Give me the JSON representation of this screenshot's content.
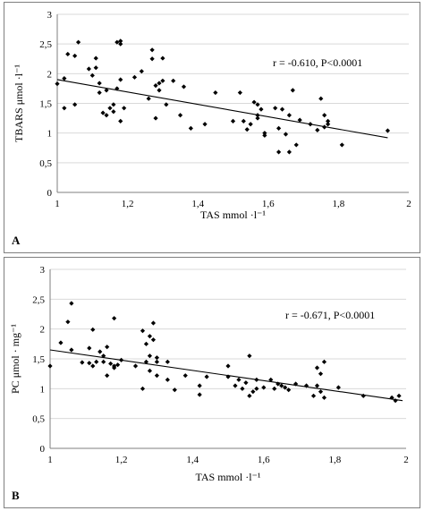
{
  "chart_data": [
    {
      "type": "scatter",
      "panel_label": "A",
      "xlabel": "TAS mmol ·l⁻¹",
      "ylabel": "TBARS μmol ·l⁻¹",
      "annotation": "r = -0.610, P<0.0001",
      "xlim": [
        1,
        2
      ],
      "ylim": [
        0,
        3
      ],
      "x_ticks": [
        "1",
        "1,2",
        "1,4",
        "1,6",
        "1,8",
        "2"
      ],
      "y_ticks": [
        "0",
        "0,5",
        "1",
        "1,5",
        "2",
        "2,5",
        "3"
      ],
      "trendline": {
        "x": [
          1.0,
          1.94
        ],
        "y": [
          1.9,
          0.92
        ]
      },
      "grid": true,
      "points": [
        [
          1.0,
          1.83
        ],
        [
          1.02,
          1.92
        ],
        [
          1.02,
          1.42
        ],
        [
          1.03,
          2.33
        ],
        [
          1.05,
          2.3
        ],
        [
          1.06,
          2.53
        ],
        [
          1.05,
          1.48
        ],
        [
          1.09,
          2.08
        ],
        [
          1.1,
          1.97
        ],
        [
          1.11,
          2.26
        ],
        [
          1.11,
          2.1
        ],
        [
          1.12,
          1.84
        ],
        [
          1.12,
          1.68
        ],
        [
          1.13,
          1.34
        ],
        [
          1.14,
          1.72
        ],
        [
          1.14,
          1.3
        ],
        [
          1.15,
          1.42
        ],
        [
          1.16,
          1.48
        ],
        [
          1.16,
          1.36
        ],
        [
          1.17,
          2.53
        ],
        [
          1.18,
          2.55
        ],
        [
          1.18,
          2.5
        ],
        [
          1.18,
          1.2
        ],
        [
          1.17,
          1.75
        ],
        [
          1.19,
          1.42
        ],
        [
          1.18,
          1.9
        ],
        [
          1.22,
          1.94
        ],
        [
          1.24,
          2.04
        ],
        [
          1.26,
          1.58
        ],
        [
          1.27,
          2.4
        ],
        [
          1.27,
          2.25
        ],
        [
          1.28,
          1.8
        ],
        [
          1.28,
          1.25
        ],
        [
          1.29,
          1.84
        ],
        [
          1.29,
          1.72
        ],
        [
          1.3,
          2.26
        ],
        [
          1.3,
          1.88
        ],
        [
          1.31,
          1.48
        ],
        [
          1.33,
          1.88
        ],
        [
          1.35,
          1.3
        ],
        [
          1.36,
          1.78
        ],
        [
          1.38,
          1.08
        ],
        [
          1.42,
          1.15
        ],
        [
          1.45,
          1.68
        ],
        [
          1.5,
          1.2
        ],
        [
          1.52,
          1.68
        ],
        [
          1.53,
          1.2
        ],
        [
          1.54,
          1.06
        ],
        [
          1.55,
          1.15
        ],
        [
          1.56,
          1.52
        ],
        [
          1.57,
          1.25
        ],
        [
          1.57,
          1.48
        ],
        [
          1.57,
          1.3
        ],
        [
          1.58,
          1.4
        ],
        [
          1.59,
          1.0
        ],
        [
          1.59,
          0.96
        ],
        [
          1.62,
          1.42
        ],
        [
          1.63,
          0.68
        ],
        [
          1.63,
          1.08
        ],
        [
          1.64,
          1.4
        ],
        [
          1.65,
          0.98
        ],
        [
          1.66,
          1.3
        ],
        [
          1.66,
          0.68
        ],
        [
          1.67,
          1.72
        ],
        [
          1.68,
          0.8
        ],
        [
          1.69,
          1.22
        ],
        [
          1.72,
          1.15
        ],
        [
          1.74,
          1.05
        ],
        [
          1.75,
          1.58
        ],
        [
          1.76,
          1.3
        ],
        [
          1.76,
          1.1
        ],
        [
          1.77,
          1.2
        ],
        [
          1.77,
          1.15
        ],
        [
          1.81,
          0.8
        ],
        [
          1.94,
          1.04
        ]
      ]
    },
    {
      "type": "scatter",
      "panel_label": "B",
      "xlabel": "TAS mmol ·l⁻¹",
      "ylabel": "PC μmol · mg⁻¹",
      "annotation": "r = -0.671, P<0.0001",
      "xlim": [
        1,
        2
      ],
      "ylim": [
        0,
        3
      ],
      "x_ticks": [
        "1",
        "1,2",
        "1,4",
        "1,6",
        "1,8",
        "2"
      ],
      "y_ticks": [
        "0",
        "0,5",
        "1",
        "1,5",
        "2",
        "2,5",
        "3"
      ],
      "trendline": {
        "x": [
          1.0,
          1.99
        ],
        "y": [
          1.65,
          0.8
        ]
      },
      "grid": true,
      "points": [
        [
          1.0,
          1.38
        ],
        [
          1.03,
          1.77
        ],
        [
          1.05,
          2.12
        ],
        [
          1.06,
          2.43
        ],
        [
          1.06,
          1.65
        ],
        [
          1.09,
          1.44
        ],
        [
          1.11,
          1.68
        ],
        [
          1.11,
          1.43
        ],
        [
          1.12,
          1.38
        ],
        [
          1.12,
          1.99
        ],
        [
          1.13,
          1.45
        ],
        [
          1.14,
          1.62
        ],
        [
          1.15,
          1.55
        ],
        [
          1.15,
          1.45
        ],
        [
          1.16,
          1.7
        ],
        [
          1.16,
          1.22
        ],
        [
          1.17,
          1.42
        ],
        [
          1.18,
          1.35
        ],
        [
          1.18,
          1.38
        ],
        [
          1.18,
          2.18
        ],
        [
          1.19,
          1.4
        ],
        [
          1.2,
          1.48
        ],
        [
          1.24,
          1.38
        ],
        [
          1.26,
          1.97
        ],
        [
          1.26,
          1.0
        ],
        [
          1.27,
          1.45
        ],
        [
          1.27,
          1.75
        ],
        [
          1.28,
          1.88
        ],
        [
          1.28,
          1.3
        ],
        [
          1.28,
          1.55
        ],
        [
          1.29,
          2.1
        ],
        [
          1.29,
          1.82
        ],
        [
          1.3,
          1.45
        ],
        [
          1.3,
          1.22
        ],
        [
          1.3,
          1.52
        ],
        [
          1.33,
          1.45
        ],
        [
          1.33,
          1.15
        ],
        [
          1.35,
          0.98
        ],
        [
          1.38,
          1.22
        ],
        [
          1.42,
          1.05
        ],
        [
          1.42,
          0.9
        ],
        [
          1.44,
          1.2
        ],
        [
          1.5,
          1.38
        ],
        [
          1.5,
          1.2
        ],
        [
          1.52,
          1.05
        ],
        [
          1.53,
          1.15
        ],
        [
          1.54,
          1.0
        ],
        [
          1.55,
          1.1
        ],
        [
          1.56,
          1.55
        ],
        [
          1.56,
          0.88
        ],
        [
          1.57,
          0.95
        ],
        [
          1.58,
          1.0
        ],
        [
          1.58,
          1.15
        ],
        [
          1.6,
          1.02
        ],
        [
          1.62,
          1.15
        ],
        [
          1.63,
          1.0
        ],
        [
          1.64,
          1.08
        ],
        [
          1.65,
          1.05
        ],
        [
          1.66,
          1.02
        ],
        [
          1.67,
          0.98
        ],
        [
          1.69,
          1.08
        ],
        [
          1.72,
          1.05
        ],
        [
          1.74,
          0.88
        ],
        [
          1.75,
          1.05
        ],
        [
          1.75,
          1.35
        ],
        [
          1.76,
          1.25
        ],
        [
          1.76,
          0.95
        ],
        [
          1.77,
          1.45
        ],
        [
          1.77,
          0.85
        ],
        [
          1.81,
          1.02
        ],
        [
          1.88,
          0.88
        ],
        [
          1.96,
          0.85
        ],
        [
          1.97,
          0.8
        ],
        [
          1.98,
          0.88
        ]
      ]
    }
  ]
}
